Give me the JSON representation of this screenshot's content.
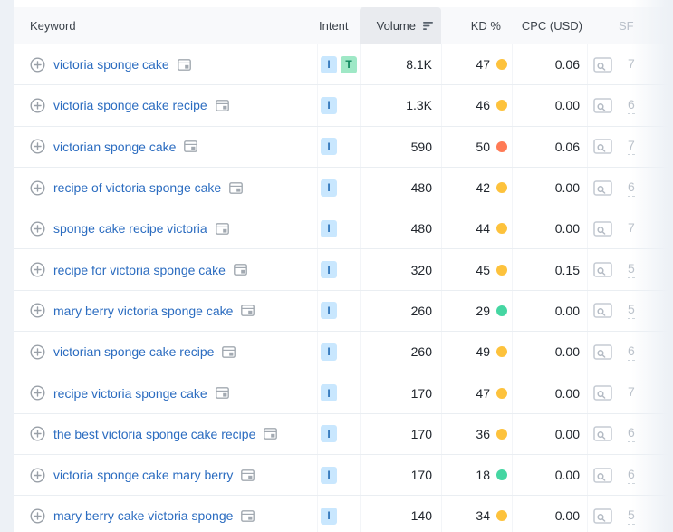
{
  "table": {
    "sort": {
      "column": "Volume",
      "direction": "desc"
    },
    "columns": [
      {
        "id": "keyword",
        "label": "Keyword"
      },
      {
        "id": "intent",
        "label": "Intent"
      },
      {
        "id": "volume",
        "label": "Volume"
      },
      {
        "id": "kd",
        "label": "KD %"
      },
      {
        "id": "cpc",
        "label": "CPC (USD)"
      },
      {
        "id": "sf",
        "label": "SF"
      }
    ],
    "rows": [
      {
        "keyword": "victoria sponge cake",
        "intents": [
          {
            "label": "I",
            "type": "informational"
          },
          {
            "label": "T",
            "type": "transactional"
          }
        ],
        "volume": "8.1K",
        "kd": "47",
        "kd_level": "medium",
        "cpc": "0.06",
        "sf": "7"
      },
      {
        "keyword": "victoria sponge cake recipe",
        "intents": [
          {
            "label": "I",
            "type": "informational"
          }
        ],
        "volume": "1.3K",
        "kd": "46",
        "kd_level": "medium",
        "cpc": "0.00",
        "sf": "6"
      },
      {
        "keyword": "victorian sponge cake",
        "intents": [
          {
            "label": "I",
            "type": "informational"
          }
        ],
        "volume": "590",
        "kd": "50",
        "kd_level": "hard",
        "cpc": "0.06",
        "sf": "7"
      },
      {
        "keyword": "recipe of victoria sponge cake",
        "intents": [
          {
            "label": "I",
            "type": "informational"
          }
        ],
        "volume": "480",
        "kd": "42",
        "kd_level": "medium",
        "cpc": "0.00",
        "sf": "6"
      },
      {
        "keyword": "sponge cake recipe victoria",
        "intents": [
          {
            "label": "I",
            "type": "informational"
          }
        ],
        "volume": "480",
        "kd": "44",
        "kd_level": "medium",
        "cpc": "0.00",
        "sf": "7"
      },
      {
        "keyword": "recipe for victoria sponge cake",
        "intents": [
          {
            "label": "I",
            "type": "informational"
          }
        ],
        "volume": "320",
        "kd": "45",
        "kd_level": "medium",
        "cpc": "0.15",
        "sf": "5"
      },
      {
        "keyword": "mary berry victoria sponge cake",
        "intents": [
          {
            "label": "I",
            "type": "informational"
          }
        ],
        "volume": "260",
        "kd": "29",
        "kd_level": "easy",
        "cpc": "0.00",
        "sf": "5"
      },
      {
        "keyword": "victorian sponge cake recipe",
        "intents": [
          {
            "label": "I",
            "type": "informational"
          }
        ],
        "volume": "260",
        "kd": "49",
        "kd_level": "medium",
        "cpc": "0.00",
        "sf": "6"
      },
      {
        "keyword": "recipe victoria sponge cake",
        "intents": [
          {
            "label": "I",
            "type": "informational"
          }
        ],
        "volume": "170",
        "kd": "47",
        "kd_level": "medium",
        "cpc": "0.00",
        "sf": "7"
      },
      {
        "keyword": "the best victoria sponge cake recipe",
        "intents": [
          {
            "label": "I",
            "type": "informational"
          }
        ],
        "volume": "170",
        "kd": "36",
        "kd_level": "medium",
        "cpc": "0.00",
        "sf": "6"
      },
      {
        "keyword": "victoria sponge cake mary berry",
        "intents": [
          {
            "label": "I",
            "type": "informational"
          }
        ],
        "volume": "170",
        "kd": "18",
        "kd_level": "easy",
        "cpc": "0.00",
        "sf": "6"
      },
      {
        "keyword": "mary berry cake victoria sponge",
        "intents": [
          {
            "label": "I",
            "type": "informational"
          }
        ],
        "volume": "140",
        "kd": "34",
        "kd_level": "medium",
        "cpc": "0.00",
        "sf": "5"
      }
    ]
  },
  "colors": {
    "link": "#2b6cc0",
    "kd": {
      "easy": "#45d6a2",
      "medium": "#fdc23c",
      "hard": "#ff7a55"
    },
    "intent": {
      "informational": {
        "bg": "#c9e7fe",
        "text": "#2b71b8"
      },
      "transactional": {
        "bg": "#9fe8c6",
        "text": "#11885f"
      }
    }
  }
}
